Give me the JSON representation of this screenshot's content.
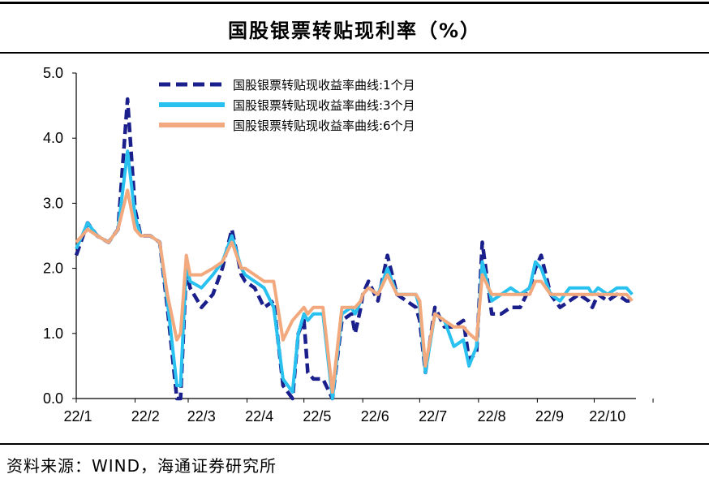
{
  "title": "国股银票转贴现利率（%）",
  "source": "资料来源：WIND，海通证券研究所",
  "chart_data": {
    "type": "line",
    "title": "国股银票转贴现利率（%）",
    "ylim": [
      0,
      5
    ],
    "yticks": [
      "0.0",
      "1.0",
      "2.0",
      "3.0",
      "4.0",
      "5.0"
    ],
    "xticks": [
      "22/1",
      "22/2",
      "22/3",
      "22/4",
      "22/5",
      "22/6",
      "22/7",
      "22/8",
      "22/9",
      "22/10"
    ],
    "grid": false,
    "legend_position": "top-center",
    "x": [
      "2022-01-01",
      "2022-01-07",
      "2022-01-12",
      "2022-01-18",
      "2022-01-23",
      "2022-01-28",
      "2022-02-01",
      "2022-02-04",
      "2022-02-09",
      "2022-02-14",
      "2022-02-18",
      "2022-02-23",
      "2022-02-25",
      "2022-02-28",
      "2022-03-02",
      "2022-03-08",
      "2022-03-14",
      "2022-03-19",
      "2022-03-24",
      "2022-03-29",
      "2022-03-31",
      "2022-04-05",
      "2022-04-10",
      "2022-04-15",
      "2022-04-20",
      "2022-04-25",
      "2022-04-28",
      "2022-05-01",
      "2022-05-03",
      "2022-05-06",
      "2022-05-11",
      "2022-05-16",
      "2022-05-21",
      "2022-05-26",
      "2022-05-28",
      "2022-05-31",
      "2022-06-01",
      "2022-06-04",
      "2022-06-09",
      "2022-06-14",
      "2022-06-19",
      "2022-06-24",
      "2022-06-29",
      "2022-07-01",
      "2022-07-04",
      "2022-07-09",
      "2022-07-14",
      "2022-07-19",
      "2022-07-24",
      "2022-07-27",
      "2022-07-31",
      "2022-08-03",
      "2022-08-08",
      "2022-08-13",
      "2022-08-18",
      "2022-08-23",
      "2022-08-28",
      "2022-08-31",
      "2022-09-03",
      "2022-09-08",
      "2022-09-13",
      "2022-09-18",
      "2022-09-23",
      "2022-09-28",
      "2022-09-30",
      "2022-10-03",
      "2022-10-08",
      "2022-10-13",
      "2022-10-18",
      "2022-10-21"
    ],
    "series": [
      {
        "name": "国股银票转贴现收益率曲线:1个月",
        "color": "#1a1f8c",
        "dash": "dashed",
        "values": [
          2.2,
          2.7,
          2.5,
          2.4,
          2.6,
          4.6,
          2.9,
          2.5,
          2.5,
          2.4,
          1.4,
          0.0,
          0.0,
          2.0,
          1.7,
          1.4,
          1.6,
          2.0,
          2.6,
          1.9,
          1.8,
          1.7,
          1.4,
          1.5,
          0.2,
          0.0,
          1.0,
          1.2,
          0.4,
          0.3,
          0.3,
          0.0,
          1.2,
          1.3,
          1.0,
          1.4,
          1.6,
          1.8,
          1.5,
          2.2,
          1.6,
          1.5,
          1.4,
          1.2,
          0.4,
          1.4,
          1.1,
          1.1,
          1.2,
          0.6,
          0.7,
          2.4,
          1.3,
          1.3,
          1.4,
          1.4,
          1.7,
          2.0,
          2.2,
          1.6,
          1.4,
          1.5,
          1.6,
          1.5,
          1.4,
          1.6,
          1.5,
          1.6,
          1.5,
          1.5
        ]
      },
      {
        "name": "国股银票转贴现收益率曲线:3个月",
        "color": "#29c1ef",
        "dash": "solid",
        "values": [
          2.3,
          2.7,
          2.5,
          2.4,
          2.6,
          3.8,
          2.8,
          2.5,
          2.5,
          2.4,
          1.5,
          0.2,
          0.2,
          2.1,
          1.8,
          1.7,
          1.9,
          2.1,
          2.5,
          2.0,
          1.9,
          1.8,
          1.7,
          1.4,
          0.3,
          0.1,
          1.0,
          1.3,
          1.2,
          1.3,
          1.3,
          0.0,
          1.3,
          1.4,
          1.3,
          1.5,
          1.6,
          1.7,
          1.6,
          2.0,
          1.6,
          1.6,
          1.6,
          1.4,
          0.4,
          1.3,
          1.2,
          0.8,
          0.9,
          0.5,
          0.8,
          2.1,
          1.5,
          1.6,
          1.7,
          1.6,
          1.7,
          2.1,
          2.0,
          1.6,
          1.5,
          1.7,
          1.7,
          1.7,
          1.6,
          1.7,
          1.6,
          1.7,
          1.7,
          1.6
        ]
      },
      {
        "name": "国股银票转贴现收益率曲线:6个月",
        "color": "#f2a97e",
        "dash": "solid",
        "values": [
          2.4,
          2.6,
          2.5,
          2.4,
          2.6,
          3.2,
          2.6,
          2.5,
          2.5,
          2.4,
          1.6,
          0.9,
          1.0,
          2.2,
          1.9,
          1.9,
          2.0,
          2.1,
          2.4,
          2.0,
          2.0,
          1.9,
          1.8,
          1.8,
          0.9,
          1.2,
          1.3,
          1.4,
          1.3,
          1.4,
          1.4,
          0.1,
          1.4,
          1.4,
          1.4,
          1.5,
          1.6,
          1.7,
          1.6,
          1.9,
          1.6,
          1.6,
          1.6,
          1.5,
          0.5,
          1.3,
          1.2,
          1.1,
          1.1,
          1.0,
          0.9,
          1.9,
          1.6,
          1.6,
          1.6,
          1.6,
          1.6,
          1.8,
          1.8,
          1.6,
          1.6,
          1.6,
          1.6,
          1.6,
          1.6,
          1.6,
          1.6,
          1.6,
          1.6,
          1.5
        ]
      }
    ]
  }
}
